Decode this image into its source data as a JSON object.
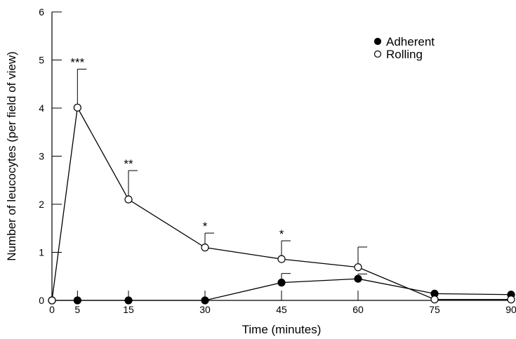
{
  "chart_data": {
    "type": "line",
    "title": "",
    "xlabel": "Time (minutes)",
    "ylabel": "Number of leucocytes (per field of view)",
    "xlim": [
      0,
      90
    ],
    "ylim": [
      0,
      6
    ],
    "x_ticks": [
      0,
      5,
      15,
      30,
      45,
      60,
      75,
      90
    ],
    "y_ticks": [
      0,
      1,
      2,
      3,
      4,
      5,
      6
    ],
    "grid": false,
    "legend_position": "top-right",
    "series": [
      {
        "name": "Adherent",
        "marker": "filled-circle",
        "x": [
          0,
          5,
          15,
          30,
          45,
          60,
          75,
          90
        ],
        "y": [
          0,
          0,
          0,
          0,
          0.37,
          0.45,
          0.14,
          0.12
        ],
        "error_plus": [
          0,
          0,
          0,
          0,
          0.19,
          0.1,
          0,
          0
        ]
      },
      {
        "name": "Rolling",
        "marker": "open-circle",
        "x": [
          0,
          5,
          15,
          30,
          45,
          60,
          75,
          90
        ],
        "y": [
          0,
          4.01,
          2.1,
          1.1,
          0.86,
          0.69,
          0.02,
          0.02
        ],
        "error_plus": [
          0,
          0.8,
          0.6,
          0.3,
          0.38,
          0.42,
          0,
          0
        ]
      }
    ],
    "annotations": [
      {
        "x": 5,
        "y": 4.81,
        "text": "***"
      },
      {
        "x": 15,
        "y": 2.7,
        "text": "**"
      },
      {
        "x": 30,
        "y": 1.4,
        "text": "*"
      },
      {
        "x": 45,
        "y": 1.24,
        "text": "*"
      }
    ]
  }
}
